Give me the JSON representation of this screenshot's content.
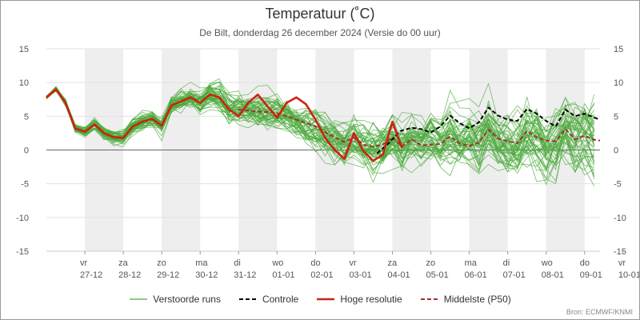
{
  "header": {
    "title": "Temperatuur (˚C)",
    "subtitle": "De Bilt, donderdag 26 december 2024 (Versie do 00 uur)"
  },
  "source": "Bron: ECMWF/KNMI",
  "colors": {
    "perturbed": "#4aaa3a",
    "control": "#000000",
    "high_res": "#cc2211",
    "median": "#a33030",
    "weekend_band": "#eeeeee"
  },
  "legend": [
    {
      "key": "perturbed",
      "label": "Verstoorde runs",
      "style": "solid-thin"
    },
    {
      "key": "control",
      "label": "Controle",
      "style": "dashed"
    },
    {
      "key": "high_res",
      "label": "Hoge resolutie",
      "style": "solid-thick"
    },
    {
      "key": "median",
      "label": "Middelste (P50)",
      "style": "dashed"
    }
  ],
  "chart_data": {
    "type": "line",
    "ylim": [
      -15,
      15
    ],
    "yticks": [
      -15,
      -10,
      -5,
      0,
      5,
      10,
      15
    ],
    "xlim": [
      0,
      14.4
    ],
    "x_unit": "days since 26 December 2024 00 UTC",
    "day_labels": [
      {
        "day": "vr",
        "date": "27-12"
      },
      {
        "day": "za",
        "date": "28-12"
      },
      {
        "day": "zo",
        "date": "29-12"
      },
      {
        "day": "ma",
        "date": "30-12"
      },
      {
        "day": "di",
        "date": "31-12"
      },
      {
        "day": "wo",
        "date": "01-01"
      },
      {
        "day": "do",
        "date": "02-01"
      },
      {
        "day": "vr",
        "date": "03-01"
      },
      {
        "day": "za",
        "date": "04-01"
      },
      {
        "day": "zo",
        "date": "05-01"
      },
      {
        "day": "ma",
        "date": "06-01"
      },
      {
        "day": "di",
        "date": "07-01"
      },
      {
        "day": "wo",
        "date": "08-01"
      },
      {
        "day": "do",
        "date": "09-01"
      },
      {
        "day": "vr",
        "date": "10-01"
      }
    ],
    "shaded_days": [
      1,
      3,
      5,
      7,
      9,
      11,
      13
    ],
    "ensemble_members": 50,
    "high_resolution": {
      "name": "Hoge resolutie",
      "x": [
        0,
        0.25,
        0.5,
        0.75,
        1,
        1.25,
        1.5,
        1.75,
        2,
        2.25,
        2.5,
        2.75,
        3,
        3.25,
        3.5,
        3.75,
        4,
        4.25,
        4.5,
        4.75,
        5,
        5.25,
        5.5,
        5.75,
        6,
        6.25,
        6.5,
        6.75,
        7,
        7.25,
        7.5,
        7.75,
        8,
        8.25,
        8.5,
        8.75,
        9,
        9.25
      ],
      "y": [
        7.8,
        9.0,
        7.0,
        3.2,
        2.7,
        3.8,
        2.5,
        1.9,
        1.8,
        3.5,
        4.2,
        4.6,
        3.6,
        6.6,
        7.2,
        7.8,
        7.0,
        8.2,
        7.8,
        6.0,
        5.0,
        7.0,
        8.2,
        6.5,
        4.8,
        7.0,
        7.8,
        6.8,
        4.5,
        1.8,
        0.0,
        -1.3,
        2.5,
        -0.2,
        -1.6,
        -0.7,
        4.2,
        0.3
      ]
    },
    "control": {
      "name": "Controle",
      "x": [
        8.6,
        8.9,
        9.2,
        9.5,
        9.75,
        10,
        10.25,
        10.5,
        10.75,
        11,
        11.25,
        11.5,
        11.75,
        12,
        12.25,
        12.5,
        12.75,
        13,
        13.25,
        13.5,
        13.75,
        14,
        14.25,
        14.4
      ],
      "y": [
        -0.5,
        1.0,
        2.8,
        3.3,
        3.1,
        2.6,
        3.5,
        5.1,
        4.0,
        3.2,
        4.1,
        6.3,
        5.1,
        4.5,
        4.3,
        6.1,
        5.4,
        4.3,
        3.5,
        6.0,
        5.0,
        5.4,
        4.8,
        4.5
      ]
    },
    "median": {
      "name": "Middelste (P50)",
      "x": [
        5,
        5.5,
        6,
        6.5,
        7,
        7.25,
        7.5,
        7.75,
        8,
        8.25,
        8.5,
        8.75,
        9,
        9.25,
        9.5,
        9.75,
        10,
        10.25,
        10.5,
        10.75,
        11,
        11.25,
        11.5,
        11.75,
        12,
        12.25,
        12.5,
        12.75,
        13,
        13.25,
        13.5,
        13.75,
        14,
        14.25,
        14.4
      ],
      "y": [
        6.0,
        5.7,
        5.5,
        4.5,
        3.5,
        2.6,
        1.9,
        1.2,
        1.8,
        0.8,
        0.5,
        0.8,
        1.9,
        0.5,
        1.6,
        0.7,
        0.8,
        0.9,
        2.0,
        1.0,
        0.6,
        1.1,
        3.0,
        1.7,
        1.3,
        1.0,
        2.8,
        1.9,
        1.4,
        1.3,
        3.1,
        1.6,
        2.1,
        1.5,
        1.4
      ]
    }
  }
}
